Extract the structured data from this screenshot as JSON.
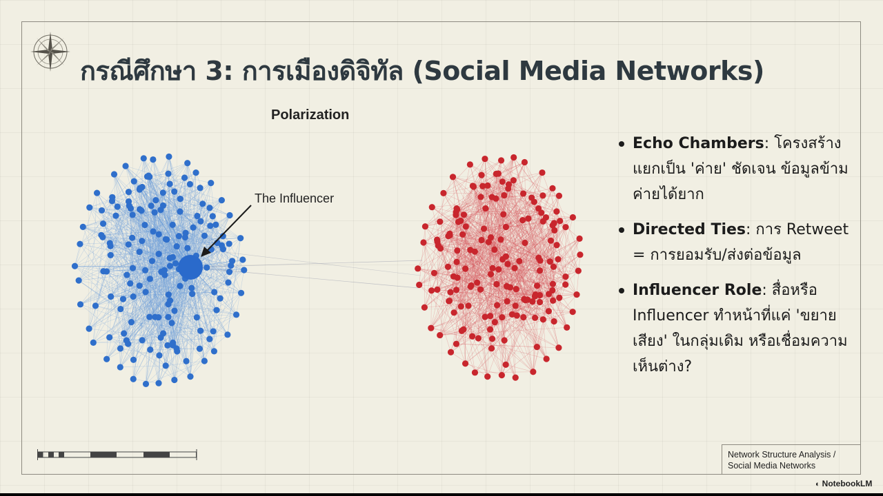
{
  "slide": {
    "title": "กรณีศึกษา 3: การเมืองดิจิทัล (Social Media Networks)"
  },
  "diagram": {
    "title": "Polarization",
    "influencer_label": "The Influencer",
    "clusters": [
      {
        "side": "left",
        "color": "#2f6fcb",
        "edge_color": "#6e9fd9"
      },
      {
        "side": "right",
        "color": "#c8262d",
        "edge_color": "#d85a5f"
      }
    ],
    "influencer_color": "#2a6acb"
  },
  "bullets": [
    {
      "term": "Echo Chambers",
      "text": ": โครงสร้างแยกเป็น 'ค่าย' ชัดเจน ข้อมูลข้ามค่ายได้ยาก"
    },
    {
      "term": "Directed Ties",
      "text": ": การ Retweet = การยอมรับ/ส่งต่อข้อมูล"
    },
    {
      "term": "Influencer Role",
      "text": ": สื่อหรือ Influencer ทำหน้าที่แค่ 'ขยายเสียง' ในกลุ่มเดิม หรือเชื่อมความเห็นต่าง?"
    }
  ],
  "footer": {
    "caption_line1": "Network Structure Analysis /",
    "caption_line2": "Social Media Networks",
    "brand": "NotebookLM"
  }
}
